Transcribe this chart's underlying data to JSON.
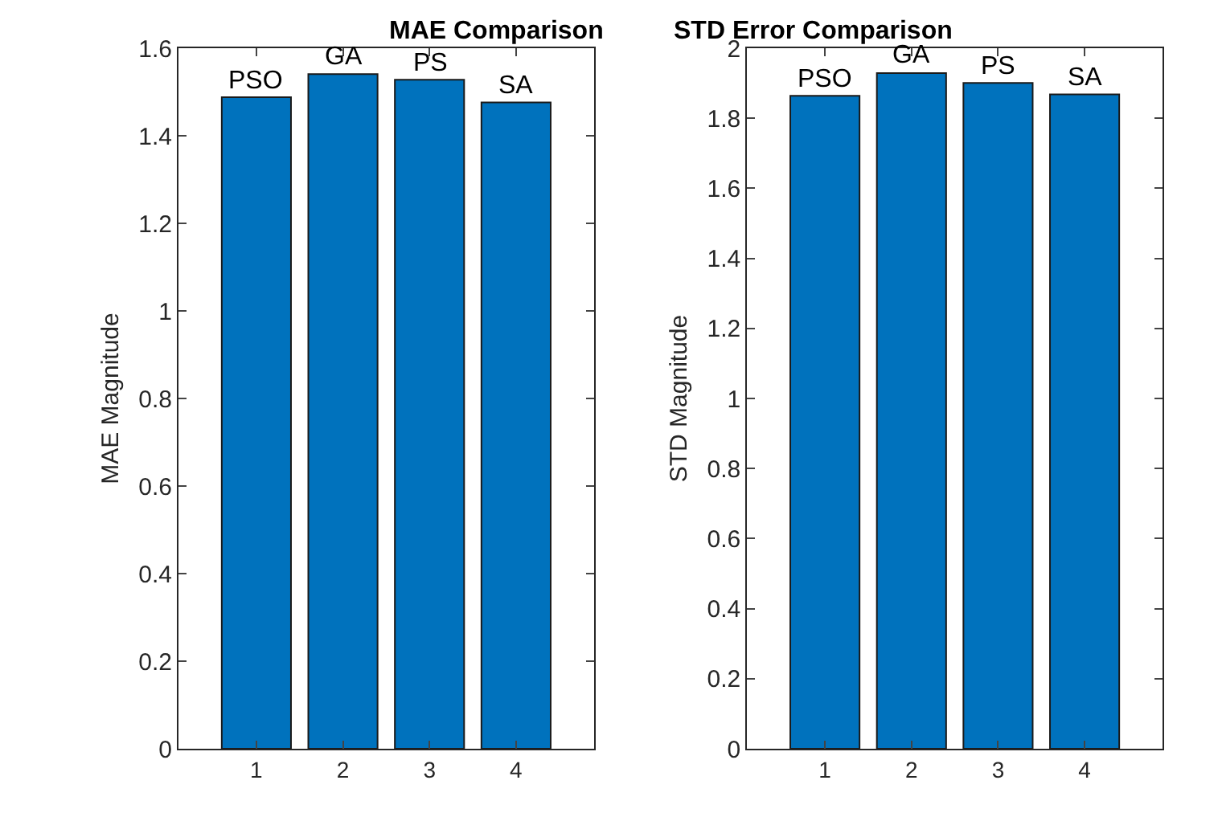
{
  "chart_data": [
    {
      "type": "bar",
      "title": "MAE Comparison",
      "ylabel": "MAE Magnitude",
      "categories": [
        "1",
        "2",
        "3",
        "4"
      ],
      "series": [
        {
          "color": "#0072bd",
          "values": [
            1.488,
            1.541,
            1.528,
            1.476
          ]
        }
      ],
      "ylim": [
        0,
        1.6
      ],
      "yticks": [
        0,
        0.2,
        0.4,
        0.6,
        0.8,
        1,
        1.2,
        1.4,
        1.6
      ],
      "grid": false,
      "legend": false,
      "annotations": [
        {
          "text": "PSO",
          "x": "1",
          "y": 1.488
        },
        {
          "text": "GA",
          "x": "2",
          "y": 1.541
        },
        {
          "text": "PS",
          "x": "3",
          "y": 1.528
        },
        {
          "text": "SA",
          "x": "4",
          "y": 1.476
        }
      ]
    },
    {
      "type": "bar",
      "title": "STD Error Comparison",
      "ylabel": "STD Magnitude",
      "categories": [
        "1",
        "2",
        "3",
        "4"
      ],
      "series": [
        {
          "color": "#0072bd",
          "values": [
            1.864,
            1.929,
            1.901,
            1.868
          ]
        }
      ],
      "ylim": [
        0,
        2
      ],
      "yticks": [
        0,
        0.2,
        0.4,
        0.6,
        0.8,
        1,
        1.2,
        1.4,
        1.6,
        1.8,
        2
      ],
      "grid": false,
      "legend": false,
      "annotations": [
        {
          "text": "PSO",
          "x": "1",
          "y": 1.864
        },
        {
          "text": "GA",
          "x": "2",
          "y": 1.929
        },
        {
          "text": "PS",
          "x": "3",
          "y": 1.901
        },
        {
          "text": "SA",
          "x": "4",
          "y": 1.868
        }
      ]
    }
  ]
}
